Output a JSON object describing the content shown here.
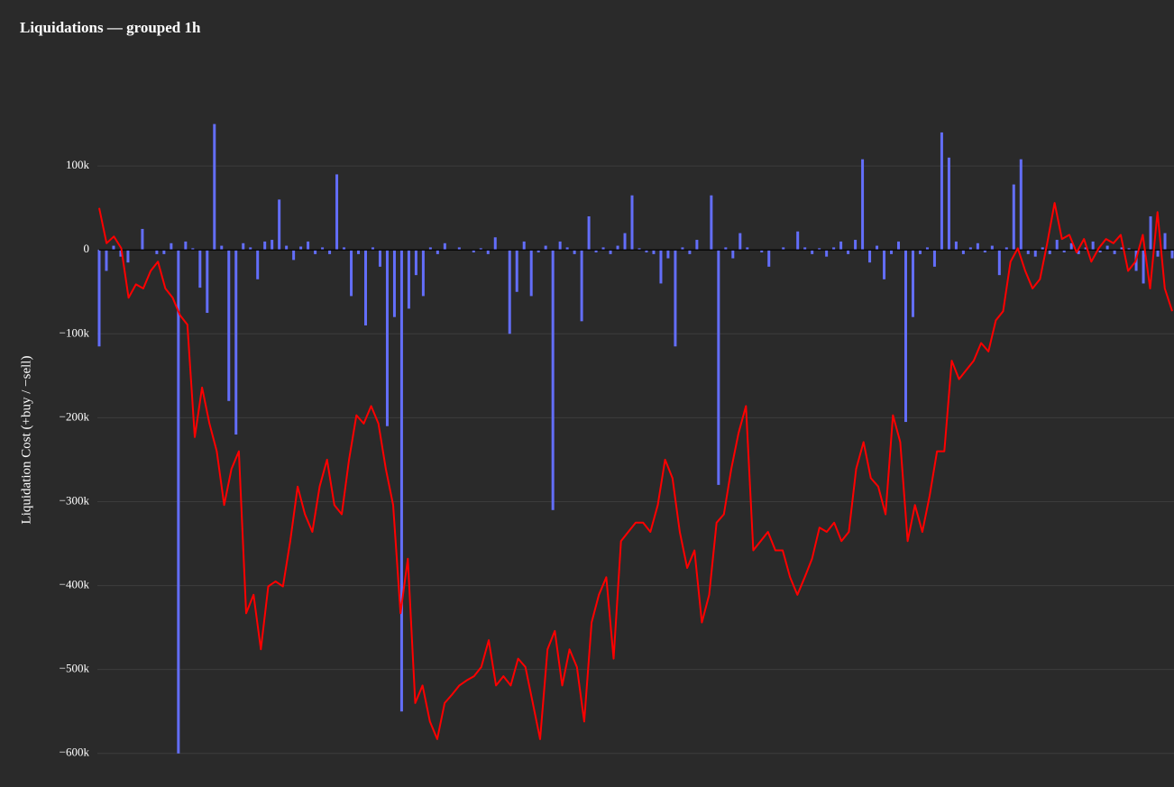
{
  "chart_data": {
    "type": "bar",
    "title": "Liquidations — grouped 1h",
    "y_label": "Liquidation Cost (+buy / −sell)",
    "ylim": [
      -640000,
      185000
    ],
    "yticks": [
      {
        "value": -600000,
        "label": "−600k"
      },
      {
        "value": -500000,
        "label": "−500k"
      },
      {
        "value": -400000,
        "label": "−400k"
      },
      {
        "value": -300000,
        "label": "−300k"
      },
      {
        "value": -200000,
        "label": "−200k"
      },
      {
        "value": -100000,
        "label": "−100k"
      },
      0,
      {
        "value": 100000,
        "label": "100k"
      }
    ],
    "grid": true,
    "series": [
      {
        "type": "bar",
        "color": "#636efa",
        "values": [
          -115000,
          -25000,
          5000,
          -8000,
          -15000,
          0,
          25000,
          0,
          -5000,
          -5000,
          8000,
          -600000,
          10000,
          2000,
          -45000,
          -75000,
          150000,
          5000,
          -180000,
          -220000,
          8000,
          3000,
          -35000,
          10000,
          12000,
          60000,
          5000,
          -12000,
          4000,
          10000,
          -5000,
          3000,
          -5000,
          90000,
          3000,
          -55000,
          -5000,
          -90000,
          3000,
          -20000,
          -210000,
          -80000,
          -550000,
          -70000,
          -30000,
          -55000,
          3000,
          -5000,
          8000,
          0,
          3000,
          0,
          -3000,
          2000,
          -5000,
          15000,
          0,
          -100000,
          -50000,
          10000,
          -55000,
          -3000,
          5000,
          -310000,
          10000,
          3000,
          -5000,
          -85000,
          40000,
          -3000,
          3000,
          -5000,
          5000,
          20000,
          65000,
          2000,
          -3000,
          -5000,
          -40000,
          -10000,
          -115000,
          3000,
          -5000,
          12000,
          0,
          65000,
          -280000,
          3000,
          -10000,
          20000,
          3000,
          0,
          -3000,
          -20000,
          0,
          3000,
          0,
          22000,
          3000,
          -5000,
          2000,
          -8000,
          3000,
          10000,
          -5000,
          12000,
          108000,
          -15000,
          5000,
          -35000,
          -5000,
          10000,
          -205000,
          -80000,
          -5000,
          3000,
          -20000,
          140000,
          110000,
          10000,
          -5000,
          3000,
          8000,
          -3000,
          5000,
          -30000,
          3000,
          78000,
          108000,
          -5000,
          -8000,
          3000,
          -5000,
          12000,
          -3000,
          8000,
          -5000,
          3000,
          10000,
          -3000,
          5000,
          -5000,
          3000,
          2000,
          -25000,
          -40000,
          40000,
          -8000,
          20000,
          -10000
        ]
      },
      {
        "type": "line",
        "color": "#ff0000",
        "values": [
          50000,
          8000,
          16000,
          2000,
          -57000,
          -41000,
          -46000,
          -25000,
          -14000,
          -46000,
          -57000,
          -78000,
          -89000,
          -223000,
          -164000,
          -207000,
          -240000,
          -304000,
          -261000,
          -240000,
          -433000,
          -411000,
          -476000,
          -401000,
          -395000,
          -401000,
          -347000,
          -282000,
          -315000,
          -336000,
          -282000,
          -250000,
          -304000,
          -315000,
          -250000,
          -197000,
          -207000,
          -186000,
          -207000,
          -261000,
          -304000,
          -433000,
          -368000,
          -540000,
          -519000,
          -562000,
          -583000,
          -540000,
          -530000,
          -519000,
          -513000,
          -508000,
          -497000,
          -465000,
          -519000,
          -508000,
          -519000,
          -487000,
          -497000,
          -540000,
          -583000,
          -476000,
          -454000,
          -519000,
          -476000,
          -497000,
          -562000,
          -444000,
          -411000,
          -390000,
          -487000,
          -347000,
          -336000,
          -325000,
          -325000,
          -336000,
          -304000,
          -250000,
          -272000,
          -336000,
          -379000,
          -358000,
          -444000,
          -411000,
          -325000,
          -315000,
          -261000,
          -218000,
          -186000,
          -358000,
          -347000,
          -336000,
          -358000,
          -358000,
          -390000,
          -411000,
          -390000,
          -368000,
          -331000,
          -336000,
          -325000,
          -347000,
          -336000,
          -261000,
          -229000,
          -272000,
          -282000,
          -315000,
          -197000,
          -229000,
          -347000,
          -304000,
          -336000,
          -293000,
          -240000,
          -240000,
          -132000,
          -154000,
          -143000,
          -132000,
          -111000,
          -121000,
          -84000,
          -73000,
          -14000,
          2000,
          -25000,
          -46000,
          -35000,
          8000,
          56000,
          13000,
          18000,
          -3000,
          13000,
          -14000,
          2000,
          13000,
          8000,
          18000,
          -25000,
          -14000,
          18000,
          -46000,
          45000,
          -46000,
          -73000
        ]
      }
    ]
  }
}
